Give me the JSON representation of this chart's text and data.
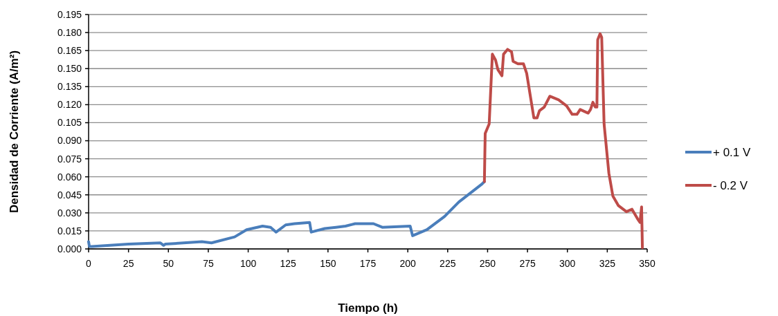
{
  "chart_data": {
    "type": "line",
    "xlabel": "Tiempo (h)",
    "ylabel": "Densidad de Corriente (A/m²)",
    "xlim": [
      0,
      350
    ],
    "xticks": [
      0,
      25,
      50,
      75,
      100,
      125,
      150,
      175,
      200,
      225,
      250,
      275,
      300,
      325,
      350
    ],
    "ylim": [
      0,
      0.195
    ],
    "yticks": [
      {
        "value": 0,
        "label": "0.000"
      },
      {
        "value": 0.015,
        "label": "0.015"
      },
      {
        "value": 0.03,
        "label": "0.030"
      },
      {
        "value": 0.045,
        "label": "0.045"
      },
      {
        "value": 0.06,
        "label": "0.060"
      },
      {
        "value": 0.075,
        "label": "0.075"
      },
      {
        "value": 0.09,
        "label": "0.090"
      },
      {
        "value": 0.105,
        "label": "0.105"
      },
      {
        "value": 0.12,
        "label": "0.120"
      },
      {
        "value": 0.135,
        "label": "0.135"
      },
      {
        "value": 0.15,
        "label": "0.150"
      },
      {
        "value": 0.165,
        "label": "0.165"
      },
      {
        "value": 0.18,
        "label": "0.180"
      },
      {
        "value": 0.195,
        "label": "0.195"
      }
    ],
    "grid": "y",
    "legend": "right",
    "marker": "none",
    "line_style": "solid",
    "series": [
      {
        "name": "+ 0.1 V",
        "color": "#4a7ebb",
        "x": [
          0,
          0.5,
          2,
          25,
          45,
          47,
          48,
          71,
          77,
          91.5,
          99,
          109,
          114,
          117.5,
          123.5,
          129,
          138.5,
          139.5,
          148,
          155,
          161,
          167,
          178.5,
          184,
          201.5,
          203,
          212,
          223,
          232,
          246.5,
          248
        ],
        "values": [
          0.006,
          0.002,
          0.002,
          0.004,
          0.005,
          0.003,
          0.004,
          0.006,
          0.005,
          0.01,
          0.016,
          0.019,
          0.018,
          0.014,
          0.02,
          0.021,
          0.022,
          0.014,
          0.017,
          0.018,
          0.019,
          0.021,
          0.021,
          0.018,
          0.019,
          0.011,
          0.016,
          0.027,
          0.039,
          0.054,
          0.056
        ]
      },
      {
        "name": "- 0.2 V",
        "color": "#be4b48",
        "x": [
          248,
          248.5,
          251,
          253,
          255,
          256.5,
          259,
          260,
          262.5,
          265,
          266,
          269,
          272.5,
          274.5,
          279,
          281,
          282.5,
          285.5,
          289,
          294.5,
          299.5,
          303,
          306,
          308,
          313,
          314.5,
          316,
          317.5,
          318.5,
          319,
          320.5,
          321.5,
          323,
          326,
          328.5,
          332,
          337,
          340.5,
          344,
          345.5,
          346.5,
          347
        ],
        "values": [
          0.056,
          0.096,
          0.104,
          0.162,
          0.157,
          0.149,
          0.144,
          0.162,
          0.166,
          0.164,
          0.156,
          0.154,
          0.154,
          0.146,
          0.109,
          0.109,
          0.115,
          0.118,
          0.127,
          0.124,
          0.119,
          0.112,
          0.112,
          0.116,
          0.113,
          0.116,
          0.122,
          0.118,
          0.118,
          0.174,
          0.179,
          0.176,
          0.104,
          0.063,
          0.044,
          0.036,
          0.031,
          0.033,
          0.025,
          0.022,
          0.035,
          0.001
        ]
      }
    ]
  }
}
